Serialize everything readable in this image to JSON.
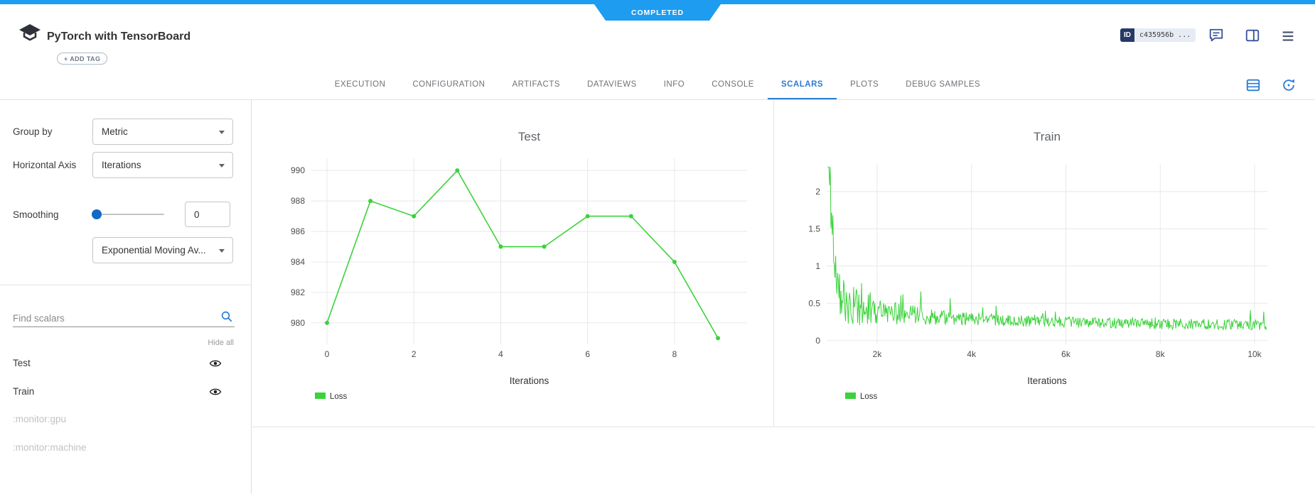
{
  "status": {
    "label": "COMPLETED",
    "color": "#1e9cf0"
  },
  "header": {
    "title": "PyTorch with TensorBoard",
    "add_tag": "+ ADD TAG",
    "id_badge": {
      "label": "ID",
      "value": "c435956b ..."
    }
  },
  "tabs": {
    "items": [
      "EXECUTION",
      "CONFIGURATION",
      "ARTIFACTS",
      "DATAVIEWS",
      "INFO",
      "CONSOLE",
      "SCALARS",
      "PLOTS",
      "DEBUG SAMPLES"
    ],
    "active": "SCALARS",
    "active_color": "#2b7bd3"
  },
  "sidebar": {
    "group_by": {
      "label": "Group by",
      "value": "Metric"
    },
    "horizontal_axis": {
      "label": "Horizontal Axis",
      "value": "Iterations"
    },
    "smoothing": {
      "label": "Smoothing",
      "value": "0",
      "method": "Exponential Moving Av..."
    },
    "search": {
      "placeholder": "Find scalars"
    },
    "hide_all": "Hide all",
    "metrics": [
      {
        "label": "Test",
        "visible": true,
        "disabled": false
      },
      {
        "label": "Train",
        "visible": true,
        "disabled": false
      },
      {
        "label": ":monitor:gpu",
        "visible": false,
        "disabled": true
      },
      {
        "label": ":monitor:machine",
        "visible": false,
        "disabled": true
      }
    ]
  },
  "chart_data": [
    {
      "type": "line",
      "title": "Test",
      "xlabel": "Iterations",
      "color": "#3bd23b",
      "markers": true,
      "line_width": 1.6,
      "x_range": [
        -0.36,
        9.67
      ],
      "y_range": [
        978.6,
        990.8
      ],
      "x_ticks": [
        {
          "v": 0,
          "label": "0"
        },
        {
          "v": 2,
          "label": "2"
        },
        {
          "v": 4,
          "label": "4"
        },
        {
          "v": 6,
          "label": "6"
        },
        {
          "v": 8,
          "label": "8"
        }
      ],
      "y_ticks": [
        {
          "v": 980,
          "label": "980"
        },
        {
          "v": 982,
          "label": "982"
        },
        {
          "v": 984,
          "label": "984"
        },
        {
          "v": 986,
          "label": "986"
        },
        {
          "v": 988,
          "label": "988"
        },
        {
          "v": 990,
          "label": "990"
        }
      ],
      "legend": [
        {
          "label": "Loss",
          "color": "#3bd23b"
        }
      ],
      "series": [
        {
          "name": "Loss",
          "x": [
            0,
            1,
            2,
            3,
            4,
            5,
            6,
            7,
            8,
            9
          ],
          "y": [
            980,
            988,
            987,
            990,
            985,
            985,
            987,
            987,
            984,
            979
          ]
        }
      ]
    },
    {
      "type": "line",
      "title": "Train",
      "xlabel": "Iterations",
      "color": "#3bd23b",
      "markers": false,
      "line_width": 1,
      "x_range": [
        930,
        10271
      ],
      "y_range": [
        -0.05,
        2.37
      ],
      "x_ticks": [
        {
          "v": 2000,
          "label": "2k"
        },
        {
          "v": 4000,
          "label": "4k"
        },
        {
          "v": 6000,
          "label": "6k"
        },
        {
          "v": 8000,
          "label": "8k"
        },
        {
          "v": 10000,
          "label": "10k"
        }
      ],
      "y_ticks": [
        {
          "v": 0,
          "label": "0"
        },
        {
          "v": 0.5,
          "label": "0.5"
        },
        {
          "v": 1,
          "label": "1"
        },
        {
          "v": 1.5,
          "label": "1.5"
        },
        {
          "v": 2,
          "label": "2"
        }
      ],
      "legend": [
        {
          "label": "Loss",
          "color": "#3bd23b"
        }
      ],
      "series_summary": "Noisy training loss decaying from ~2.3 at iteration ~950 to ~0.2 band by iteration 10k, with upward spikes",
      "generator": {
        "seed": 12,
        "x_start": 950,
        "x_end": 10250,
        "n": 660,
        "base_offset": 0.16,
        "slow_amp": 0.2,
        "slow_tau": 4200,
        "fast_amp": 2.1,
        "fast_tau": 115,
        "noise_base": 0.11,
        "noise_amp": 0.55,
        "noise_tau": 1000,
        "spike_prob": 0.06,
        "spike_scale": 1.5,
        "min": 0.03,
        "max": 2.33
      }
    }
  ]
}
